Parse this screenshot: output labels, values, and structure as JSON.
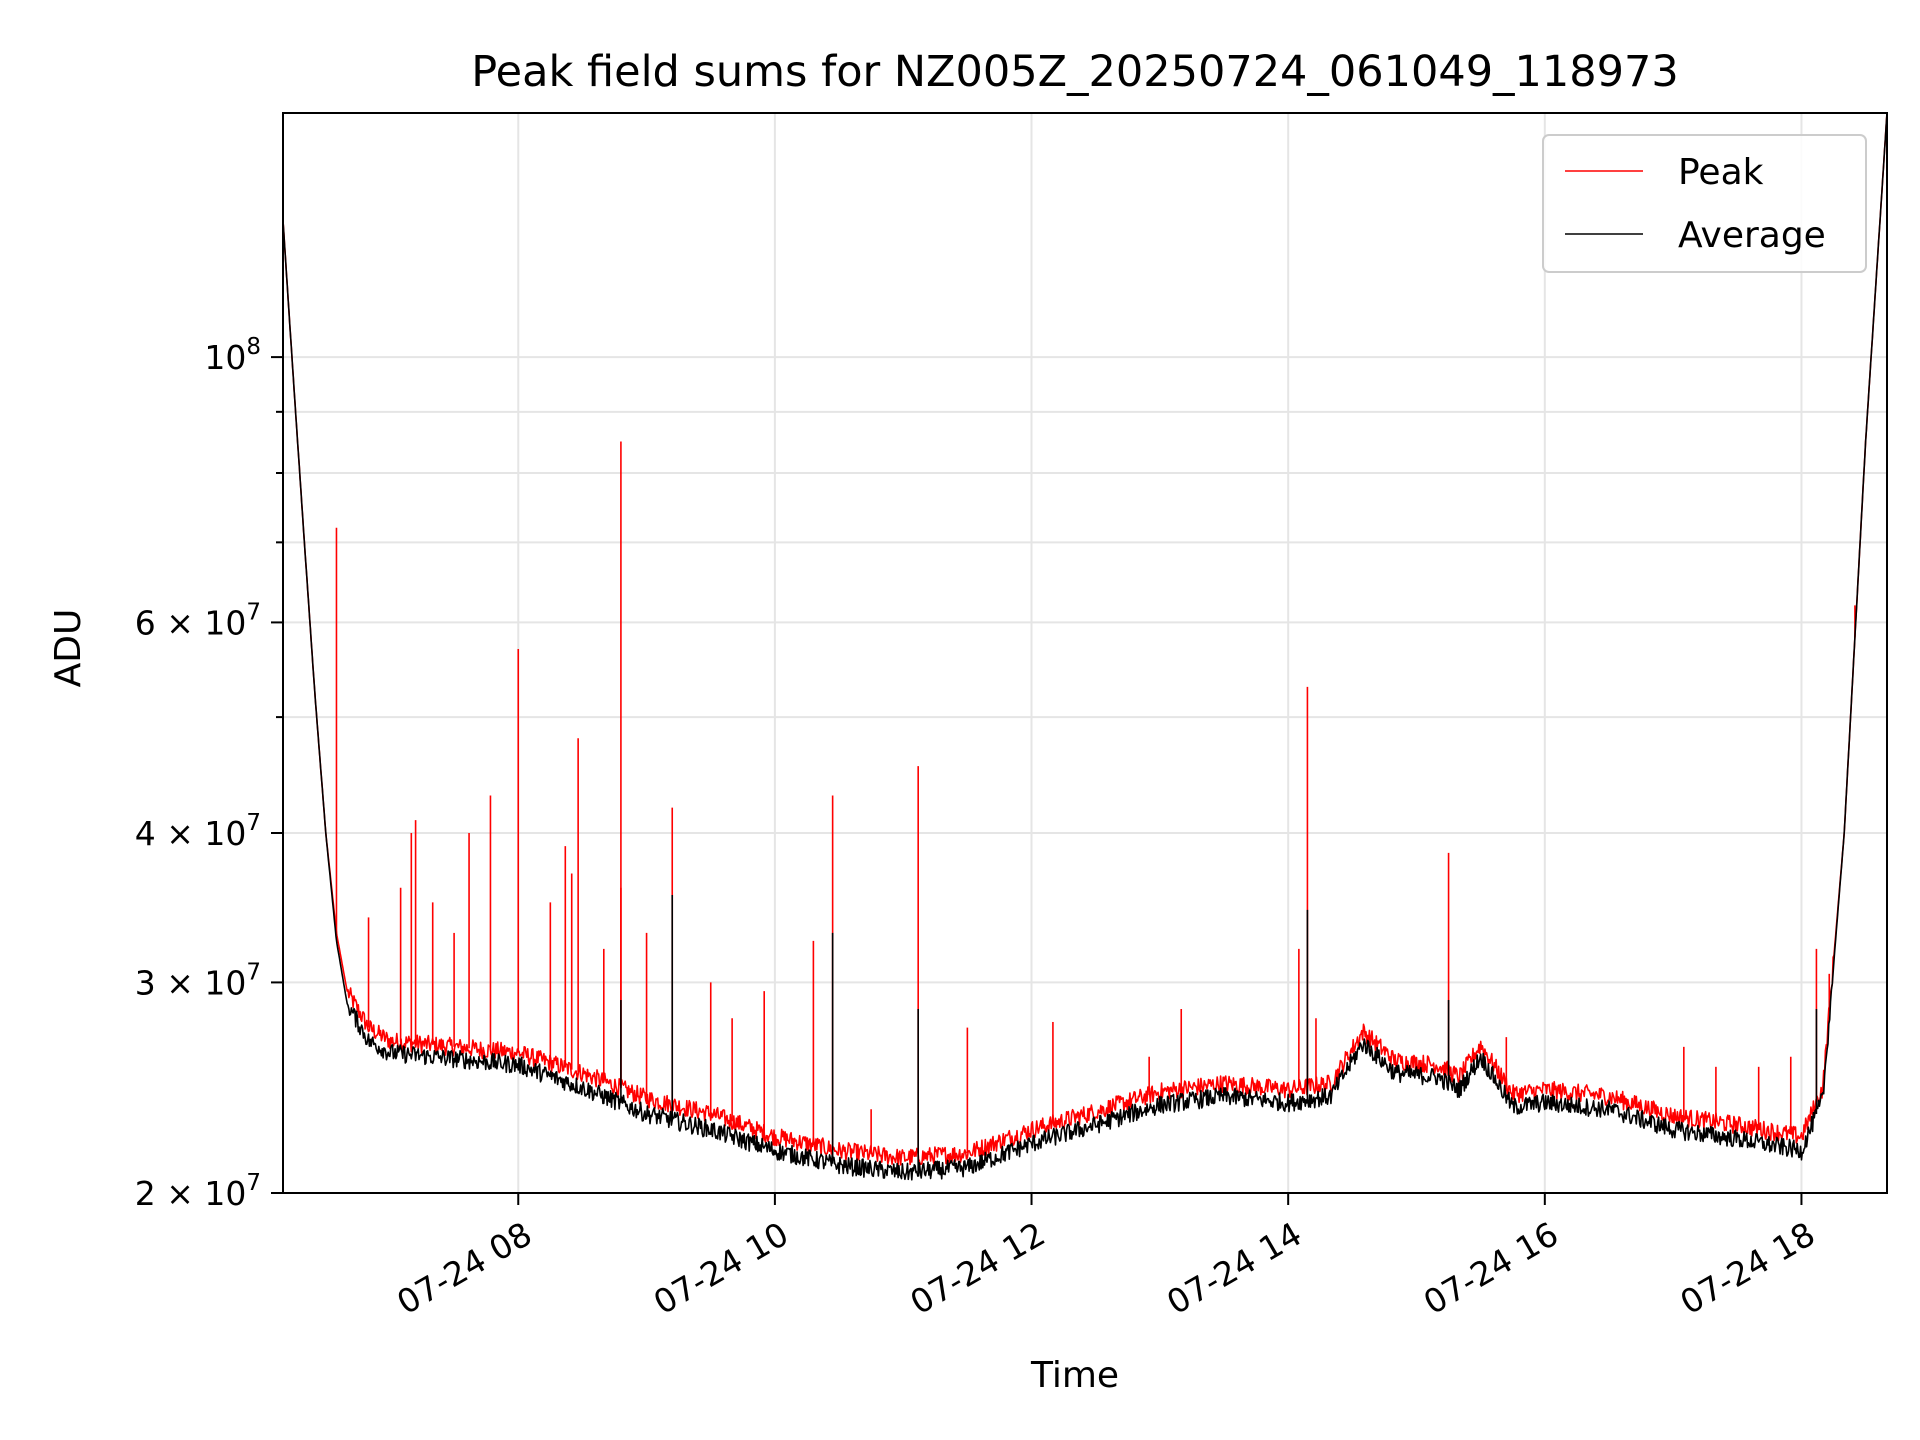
{
  "chart_data": {
    "type": "line",
    "title": "Peak field sums for NZ005Z_20250724_061049_118973",
    "xlabel": "Time",
    "ylabel": "ADU",
    "yscale": "log",
    "xlim": [
      "2025-07-24 06:10",
      "2025-07-24 18:40"
    ],
    "ylim": [
      20000000,
      160000000
    ],
    "grid": true,
    "legend_position": "top-right",
    "x_ticks": [
      "07-24 08",
      "07-24 10",
      "07-24 12",
      "07-24 14",
      "07-24 16",
      "07-24 18"
    ],
    "y_ticks": [
      {
        "value": 20000000,
        "mantissa": "2",
        "exponent": "7"
      },
      {
        "value": 30000000,
        "mantissa": "3",
        "exponent": "7"
      },
      {
        "value": 40000000,
        "mantissa": "4",
        "exponent": "7"
      },
      {
        "value": 60000000,
        "mantissa": "6",
        "exponent": "7"
      },
      {
        "value": 100000000,
        "mantissa": "",
        "exponent": "8"
      }
    ],
    "series": [
      {
        "name": "Peak",
        "color": "#ff0000",
        "baseline": [
          [
            "06:10",
            130000000
          ],
          [
            "06:15",
            95000000
          ],
          [
            "06:20",
            70000000
          ],
          [
            "06:25",
            52000000
          ],
          [
            "06:30",
            40000000
          ],
          [
            "06:35",
            33000000
          ],
          [
            "06:40",
            29500000
          ],
          [
            "06:50",
            27500000
          ],
          [
            "07:00",
            26800000
          ],
          [
            "07:30",
            26500000
          ],
          [
            "08:00",
            26200000
          ],
          [
            "08:30",
            25200000
          ],
          [
            "09:00",
            24000000
          ],
          [
            "09:30",
            23300000
          ],
          [
            "10:00",
            22300000
          ],
          [
            "10:30",
            21700000
          ],
          [
            "11:00",
            21400000
          ],
          [
            "11:30",
            21600000
          ],
          [
            "12:00",
            22600000
          ],
          [
            "12:30",
            23400000
          ],
          [
            "13:00",
            24300000
          ],
          [
            "13:30",
            24700000
          ],
          [
            "14:00",
            24400000
          ],
          [
            "14:20",
            24700000
          ],
          [
            "14:35",
            27300000
          ],
          [
            "14:50",
            25800000
          ],
          [
            "15:10",
            25600000
          ],
          [
            "15:20",
            25000000
          ],
          [
            "15:30",
            26600000
          ],
          [
            "15:45",
            24200000
          ],
          [
            "16:00",
            24400000
          ],
          [
            "16:30",
            24100000
          ],
          [
            "17:00",
            23200000
          ],
          [
            "17:30",
            22800000
          ],
          [
            "18:00",
            22300000
          ],
          [
            "18:10",
            24500000
          ],
          [
            "18:20",
            40000000
          ],
          [
            "18:30",
            85000000
          ],
          [
            "18:40",
            160000000
          ]
        ],
        "spikes": [
          [
            "06:35",
            72000000
          ],
          [
            "06:50",
            34000000
          ],
          [
            "07:05",
            36000000
          ],
          [
            "07:10",
            40000000
          ],
          [
            "07:12",
            41000000
          ],
          [
            "07:20",
            35000000
          ],
          [
            "07:30",
            33000000
          ],
          [
            "07:37",
            40000000
          ],
          [
            "07:47",
            43000000
          ],
          [
            "08:00",
            57000000
          ],
          [
            "08:15",
            35000000
          ],
          [
            "08:22",
            39000000
          ],
          [
            "08:25",
            37000000
          ],
          [
            "08:28",
            48000000
          ],
          [
            "08:40",
            32000000
          ],
          [
            "08:48",
            36000000
          ],
          [
            "08:48",
            85000000
          ],
          [
            "09:00",
            33000000
          ],
          [
            "09:12",
            42000000
          ],
          [
            "09:30",
            30000000
          ],
          [
            "09:40",
            28000000
          ],
          [
            "09:55",
            29500000
          ],
          [
            "10:18",
            32500000
          ],
          [
            "10:27",
            43000000
          ],
          [
            "10:45",
            23500000
          ],
          [
            "11:07",
            45500000
          ],
          [
            "11:30",
            27500000
          ],
          [
            "12:10",
            27800000
          ],
          [
            "12:55",
            26000000
          ],
          [
            "13:10",
            28500000
          ],
          [
            "14:05",
            32000000
          ],
          [
            "14:09",
            53000000
          ],
          [
            "14:13",
            28000000
          ],
          [
            "15:15",
            38500000
          ],
          [
            "15:42",
            27000000
          ],
          [
            "17:05",
            26500000
          ],
          [
            "17:20",
            25500000
          ],
          [
            "17:40",
            25500000
          ],
          [
            "17:55",
            26000000
          ],
          [
            "18:07",
            32000000
          ],
          [
            "18:13",
            30500000
          ],
          [
            "18:25",
            62000000
          ]
        ]
      },
      {
        "name": "Average",
        "color": "#000000",
        "baseline": [
          [
            "06:10",
            130000000
          ],
          [
            "06:15",
            95000000
          ],
          [
            "06:20",
            70000000
          ],
          [
            "06:25",
            52000000
          ],
          [
            "06:30",
            40000000
          ],
          [
            "06:35",
            32500000
          ],
          [
            "06:40",
            28800000
          ],
          [
            "06:50",
            26800000
          ],
          [
            "07:00",
            26200000
          ],
          [
            "07:30",
            25900000
          ],
          [
            "08:00",
            25600000
          ],
          [
            "08:30",
            24500000
          ],
          [
            "09:00",
            23300000
          ],
          [
            "09:30",
            22600000
          ],
          [
            "10:00",
            21700000
          ],
          [
            "10:30",
            21100000
          ],
          [
            "11:00",
            20800000
          ],
          [
            "11:30",
            21000000
          ],
          [
            "12:00",
            22000000
          ],
          [
            "12:30",
            22800000
          ],
          [
            "13:00",
            23700000
          ],
          [
            "13:30",
            24100000
          ],
          [
            "14:00",
            23800000
          ],
          [
            "14:20",
            24100000
          ],
          [
            "14:35",
            26700000
          ],
          [
            "14:50",
            25200000
          ],
          [
            "15:10",
            25000000
          ],
          [
            "15:20",
            24400000
          ],
          [
            "15:30",
            26000000
          ],
          [
            "15:45",
            23600000
          ],
          [
            "16:00",
            23800000
          ],
          [
            "16:30",
            23500000
          ],
          [
            "17:00",
            22600000
          ],
          [
            "17:30",
            22200000
          ],
          [
            "18:00",
            21700000
          ],
          [
            "18:10",
            24000000
          ],
          [
            "18:20",
            40000000
          ],
          [
            "18:30",
            85000000
          ],
          [
            "18:40",
            160000000
          ]
        ],
        "spikes": [
          [
            "08:48",
            29000000
          ],
          [
            "09:12",
            35500000
          ],
          [
            "10:27",
            33000000
          ],
          [
            "11:07",
            28500000
          ],
          [
            "14:09",
            34500000
          ],
          [
            "15:15",
            29000000
          ],
          [
            "18:07",
            28500000
          ]
        ]
      }
    ]
  }
}
